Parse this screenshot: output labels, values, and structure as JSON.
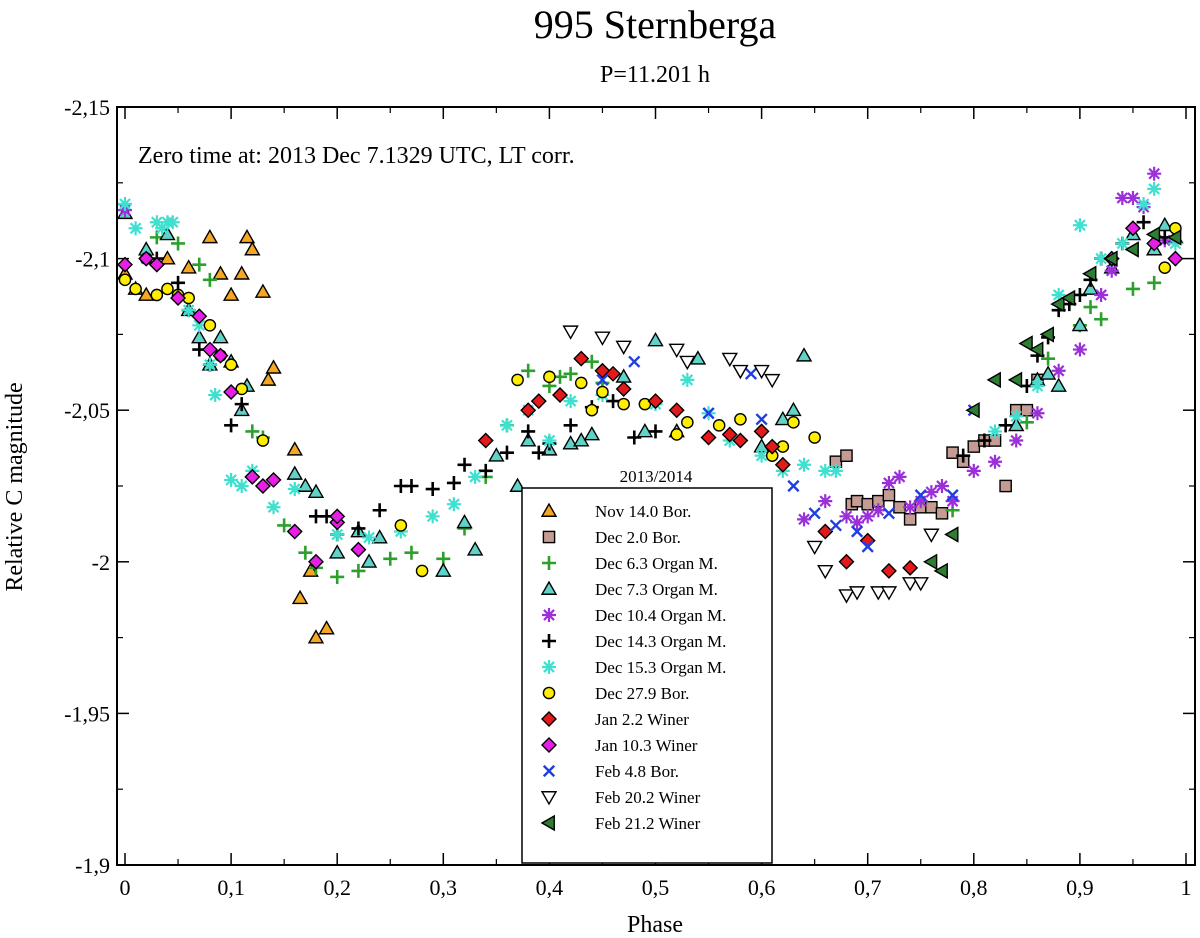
{
  "chart_data": {
    "type": "scatter",
    "title": "995 Sternberga",
    "subtitle": "P=11.201 h",
    "annotation": "Zero time at: 2013 Dec 7.1329 UTC, LT corr.",
    "xlabel": "Phase",
    "ylabel": "Relative C magnitude",
    "xlim": [
      0,
      1
    ],
    "ylim": [
      -2.15,
      -1.9
    ],
    "y_inverted": true,
    "x_ticks": [
      "0",
      "0,1",
      "0,2",
      "0,3",
      "0,4",
      "0,5",
      "0,6",
      "0,7",
      "0,8",
      "0,9",
      "1"
    ],
    "y_ticks": [
      "-2,15",
      "-2,1",
      "-2,05",
      "-2",
      "-1,95",
      "-1,9"
    ],
    "legend_title": "2013/2014",
    "legend_position": "bottom-center",
    "series": [
      {
        "name": "Nov 14.0 Bor.",
        "marker": "triangle-up",
        "color": "#f5a623",
        "x": [
          0.0,
          0.01,
          0.02,
          0.04,
          0.06,
          0.08,
          0.09,
          0.1,
          0.11,
          0.115,
          0.12,
          0.13,
          0.135,
          0.14,
          0.16,
          0.165,
          0.175,
          0.18,
          0.19
        ],
        "y": [
          -2.095,
          -2.09,
          -2.088,
          -2.1,
          -2.097,
          -2.107,
          -2.095,
          -2.088,
          -2.095,
          -2.107,
          -2.103,
          -2.089,
          -2.06,
          -2.064,
          -2.037,
          -1.988,
          -1.997,
          -1.975,
          -1.978
        ]
      },
      {
        "name": "Dec 2.0 Bor.",
        "marker": "square",
        "color": "#c49c94",
        "x": [
          0.67,
          0.68,
          0.685,
          0.69,
          0.7,
          0.71,
          0.72,
          0.73,
          0.74,
          0.75,
          0.76,
          0.77,
          0.78,
          0.79,
          0.8,
          0.81,
          0.82,
          0.83,
          0.84,
          0.85,
          0.86
        ],
        "y": [
          -2.033,
          -2.035,
          -2.019,
          -2.02,
          -2.019,
          -2.02,
          -2.022,
          -2.018,
          -2.014,
          -2.018,
          -2.018,
          -2.016,
          -2.036,
          -2.033,
          -2.038,
          -2.04,
          -2.04,
          -2.025,
          -2.05,
          -2.05,
          -2.06
        ]
      },
      {
        "name": "Dec 6.3 Organ M.",
        "marker": "plus",
        "color": "#2ca02c",
        "x": [
          0.03,
          0.05,
          0.07,
          0.08,
          0.12,
          0.13,
          0.15,
          0.17,
          0.18,
          0.2,
          0.22,
          0.25,
          0.27,
          0.3,
          0.32,
          0.34,
          0.36,
          0.38,
          0.4,
          0.41,
          0.42,
          0.44,
          0.45,
          0.78,
          0.85,
          0.87,
          0.9,
          0.91,
          0.92,
          0.95,
          0.97
        ],
        "y": [
          -2.107,
          -2.105,
          -2.098,
          -2.093,
          -2.043,
          -2.041,
          -2.012,
          -2.003,
          -1.998,
          -1.995,
          -1.997,
          -2.001,
          -2.003,
          -2.001,
          -2.011,
          -2.028,
          -2.045,
          -2.063,
          -2.058,
          -2.061,
          -2.062,
          -2.066,
          -2.059,
          -2.017,
          -2.046,
          -2.067,
          -2.078,
          -2.084,
          -2.08,
          -2.09,
          -2.092
        ]
      },
      {
        "name": "Dec 7.3 Organ M.",
        "marker": "triangle-up",
        "color": "#5fd3c7",
        "x": [
          0.0,
          0.02,
          0.04,
          0.06,
          0.07,
          0.08,
          0.09,
          0.1,
          0.11,
          0.115,
          0.16,
          0.17,
          0.18,
          0.2,
          0.22,
          0.23,
          0.24,
          0.3,
          0.32,
          0.33,
          0.35,
          0.37,
          0.38,
          0.4,
          0.42,
          0.43,
          0.44,
          0.47,
          0.49,
          0.5,
          0.52,
          0.54,
          0.6,
          0.62,
          0.63,
          0.64,
          0.84,
          0.86,
          0.87,
          0.88,
          0.9,
          0.91,
          0.93,
          0.95,
          0.97,
          0.98,
          0.99
        ],
        "y": [
          -2.115,
          -2.103,
          -2.108,
          -2.083,
          -2.074,
          -2.065,
          -2.074,
          -2.066,
          -2.05,
          -2.058,
          -2.029,
          -2.025,
          -2.023,
          -2.003,
          -2.01,
          -2.0,
          -2.008,
          -1.997,
          -2.013,
          -2.004,
          -2.035,
          -2.025,
          -2.04,
          -2.037,
          -2.039,
          -2.04,
          -2.042,
          -2.061,
          -2.043,
          -2.073,
          -2.043,
          -2.067,
          -2.038,
          -2.047,
          -2.05,
          -2.068,
          -2.045,
          -2.06,
          -2.062,
          -2.058,
          -2.078,
          -2.09,
          -2.097,
          -2.108,
          -2.103,
          -2.111,
          -2.107
        ]
      },
      {
        "name": "Dec 10.4 Organ M.",
        "marker": "asterisk",
        "color": "#9b30d9",
        "x": [
          0.0,
          0.64,
          0.66,
          0.68,
          0.69,
          0.7,
          0.71,
          0.72,
          0.73,
          0.74,
          0.75,
          0.76,
          0.77,
          0.78,
          0.8,
          0.82,
          0.84,
          0.86,
          0.88,
          0.9,
          0.92,
          0.93,
          0.94,
          0.95,
          0.96,
          0.97,
          0.98
        ],
        "y": [
          -2.116,
          -2.014,
          -2.02,
          -2.015,
          -2.013,
          -2.015,
          -2.017,
          -2.026,
          -2.028,
          -2.018,
          -2.02,
          -2.023,
          -2.025,
          -2.02,
          -2.03,
          -2.033,
          -2.04,
          -2.049,
          -2.063,
          -2.07,
          -2.088,
          -2.096,
          -2.12,
          -2.12,
          -2.117,
          -2.128,
          -2.106
        ]
      },
      {
        "name": "Dec 14.3 Organ M.",
        "marker": "plus",
        "color": "#000000",
        "x": [
          0.02,
          0.03,
          0.05,
          0.06,
          0.07,
          0.08,
          0.1,
          0.11,
          0.18,
          0.19,
          0.2,
          0.22,
          0.24,
          0.26,
          0.27,
          0.29,
          0.31,
          0.32,
          0.34,
          0.36,
          0.38,
          0.39,
          0.4,
          0.42,
          0.44,
          0.46,
          0.48,
          0.5,
          0.79,
          0.81,
          0.83,
          0.85,
          0.86,
          0.87,
          0.88,
          0.89,
          0.9,
          0.91,
          0.92,
          0.94,
          0.96,
          0.98,
          0.99
        ],
        "y": [
          -2.1,
          -2.1,
          -2.092,
          -2.083,
          -2.07,
          -2.065,
          -2.045,
          -2.052,
          -2.015,
          -2.015,
          -2.009,
          -2.011,
          -2.017,
          -2.025,
          -2.025,
          -2.024,
          -2.026,
          -2.032,
          -2.03,
          -2.036,
          -2.043,
          -2.036,
          -2.039,
          -2.045,
          -2.051,
          -2.053,
          -2.041,
          -2.043,
          -2.035,
          -2.04,
          -2.045,
          -2.058,
          -2.068,
          -2.074,
          -2.083,
          -2.085,
          -2.088,
          -2.093,
          -2.1,
          -2.105,
          -2.112,
          -2.107,
          -2.1
        ]
      },
      {
        "name": "Dec 15.3 Organ M.",
        "marker": "asterisk",
        "color": "#40e0d0",
        "x": [
          0.0,
          0.01,
          0.02,
          0.03,
          0.035,
          0.04,
          0.045,
          0.06,
          0.07,
          0.08,
          0.085,
          0.1,
          0.11,
          0.12,
          0.14,
          0.16,
          0.2,
          0.23,
          0.26,
          0.29,
          0.31,
          0.33,
          0.36,
          0.38,
          0.4,
          0.42,
          0.45,
          0.5,
          0.53,
          0.55,
          0.57,
          0.6,
          0.62,
          0.64,
          0.66,
          0.67,
          0.82,
          0.84,
          0.86,
          0.88,
          0.9,
          0.92,
          0.94,
          0.96,
          0.97,
          0.99
        ],
        "y": [
          -2.118,
          -2.11,
          -2.1,
          -2.112,
          -2.11,
          -2.112,
          -2.112,
          -2.083,
          -2.078,
          -2.065,
          -2.055,
          -2.027,
          -2.025,
          -2.03,
          -2.018,
          -2.024,
          -2.009,
          -2.008,
          -2.01,
          -2.015,
          -2.019,
          -2.028,
          -2.045,
          -2.05,
          -2.04,
          -2.053,
          -2.055,
          -2.052,
          -2.06,
          -2.049,
          -2.04,
          -2.035,
          -2.03,
          -2.032,
          -2.03,
          -2.03,
          -2.043,
          -2.048,
          -2.058,
          -2.088,
          -2.111,
          -2.1,
          -2.105,
          -2.118,
          -2.123,
          -2.105
        ]
      },
      {
        "name": "Dec 27.9 Bor.",
        "marker": "circle",
        "color": "#ffee00",
        "x": [
          0.0,
          0.01,
          0.02,
          0.03,
          0.04,
          0.05,
          0.06,
          0.08,
          0.09,
          0.1,
          0.11,
          0.13,
          0.26,
          0.28,
          0.37,
          0.4,
          0.43,
          0.44,
          0.45,
          0.47,
          0.49,
          0.52,
          0.53,
          0.56,
          0.58,
          0.61,
          0.62,
          0.63,
          0.65,
          0.98,
          0.99
        ],
        "y": [
          -2.093,
          -2.09,
          -2.1,
          -2.088,
          -2.09,
          -2.088,
          -2.087,
          -2.078,
          -2.068,
          -2.065,
          -2.057,
          -2.04,
          -2.012,
          -1.997,
          -2.06,
          -2.061,
          -2.059,
          -2.05,
          -2.056,
          -2.052,
          -2.052,
          -2.042,
          -2.046,
          -2.045,
          -2.047,
          -2.035,
          -2.038,
          -2.046,
          -2.041,
          -2.097,
          -2.11
        ]
      },
      {
        "name": "Jan 2.2 Winer",
        "marker": "diamond",
        "color": "#e31a1c",
        "x": [
          0.34,
          0.38,
          0.39,
          0.41,
          0.43,
          0.45,
          0.46,
          0.47,
          0.5,
          0.52,
          0.55,
          0.57,
          0.58,
          0.6,
          0.61,
          0.62,
          0.66,
          0.68,
          0.7,
          0.72,
          0.74
        ],
        "y": [
          -2.04,
          -2.05,
          -2.053,
          -2.055,
          -2.067,
          -2.063,
          -2.062,
          -2.057,
          -2.053,
          -2.05,
          -2.041,
          -2.042,
          -2.04,
          -2.043,
          -2.038,
          -2.032,
          -2.01,
          -2.0,
          -2.007,
          -1.997,
          -1.998
        ]
      },
      {
        "name": "Jan 10.3 Winer",
        "marker": "diamond",
        "color": "#e61ee6",
        "x": [
          0.0,
          0.02,
          0.03,
          0.05,
          0.07,
          0.08,
          0.09,
          0.1,
          0.12,
          0.13,
          0.14,
          0.16,
          0.18,
          0.2,
          0.2,
          0.22,
          0.93,
          0.95,
          0.97,
          0.99
        ],
        "y": [
          -2.098,
          -2.1,
          -2.098,
          -2.087,
          -2.081,
          -2.07,
          -2.068,
          -2.056,
          -2.028,
          -2.025,
          -2.027,
          -2.01,
          -2.0,
          -2.013,
          -2.015,
          -2.004,
          -2.1,
          -2.11,
          -2.105,
          -2.1
        ]
      },
      {
        "name": "Feb 4.8 Bor.",
        "marker": "x",
        "color": "#1f3fe0",
        "x": [
          0.45,
          0.48,
          0.55,
          0.59,
          0.6,
          0.63,
          0.65,
          0.67,
          0.69,
          0.7,
          0.72,
          0.75,
          0.78,
          0.8
        ],
        "y": [
          -2.06,
          -2.066,
          -2.049,
          -2.062,
          -2.047,
          -2.025,
          -2.016,
          -2.012,
          -2.01,
          -2.005,
          -2.016,
          -2.022,
          -2.022,
          -2.05
        ]
      },
      {
        "name": "Feb 20.2 Winer",
        "marker": "triangle-down",
        "color": "#ffffff",
        "x": [
          0.42,
          0.45,
          0.47,
          0.52,
          0.53,
          0.57,
          0.58,
          0.6,
          0.61,
          0.65,
          0.66,
          0.68,
          0.69,
          0.71,
          0.72,
          0.74,
          0.75,
          0.76
        ],
        "y": [
          -2.076,
          -2.074,
          -2.071,
          -2.07,
          -2.066,
          -2.067,
          -2.063,
          -2.063,
          -2.06,
          -2.005,
          -1.997,
          -1.989,
          -1.99,
          -1.99,
          -1.99,
          -1.993,
          -1.993,
          -2.009
        ]
      },
      {
        "name": "Feb 21.2 Winer",
        "marker": "triangle-left",
        "color": "#2e7d32",
        "x": [
          0.76,
          0.77,
          0.78,
          0.8,
          0.82,
          0.84,
          0.85,
          0.86,
          0.87,
          0.88,
          0.89,
          0.91,
          0.93,
          0.95,
          0.97,
          0.99
        ],
        "y": [
          -2.0,
          -1.997,
          -2.009,
          -2.05,
          -2.06,
          -2.06,
          -2.072,
          -2.07,
          -2.075,
          -2.085,
          -2.087,
          -2.095,
          -2.1,
          -2.103,
          -2.108,
          -2.107
        ]
      }
    ]
  }
}
